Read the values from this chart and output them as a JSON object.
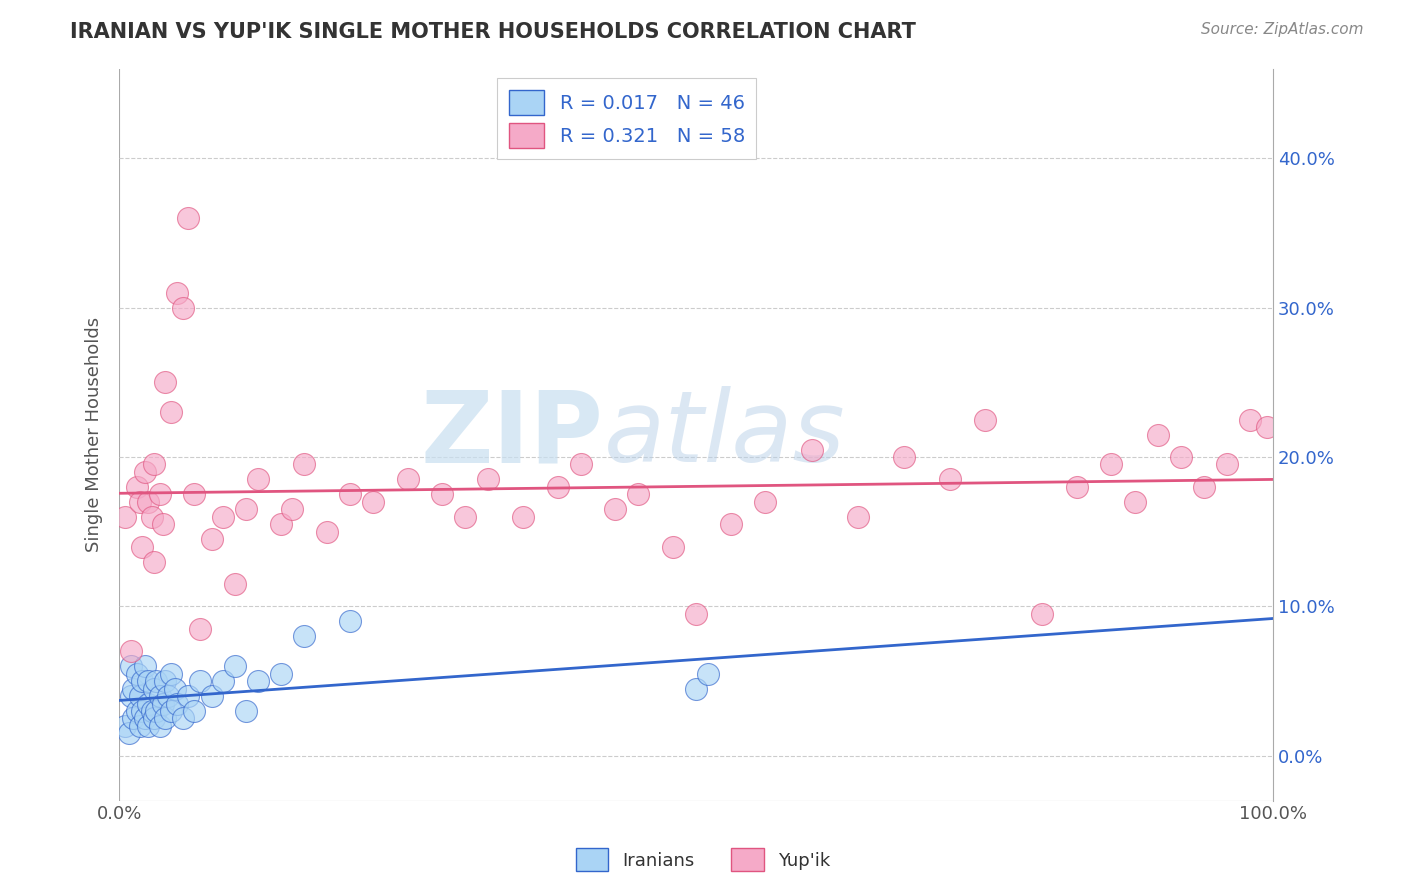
{
  "title": "IRANIAN VS YUP'IK SINGLE MOTHER HOUSEHOLDS CORRELATION CHART",
  "source": "Source: ZipAtlas.com",
  "ylabel": "Single Mother Households",
  "xlim": [
    0.0,
    1.0
  ],
  "ylim": [
    -0.03,
    0.46
  ],
  "ytick_vals": [
    0.0,
    0.1,
    0.2,
    0.3,
    0.4
  ],
  "legend_label1": "Iranians",
  "legend_label2": "Yup'ik",
  "r1": 0.017,
  "n1": 46,
  "r2": 0.321,
  "n2": 58,
  "color_iranian": "#aad4f5",
  "color_yupik": "#f5aac8",
  "line_color_iranian": "#3366cc",
  "line_color_yupik": "#e05580",
  "background_color": "#ffffff",
  "watermark_zip": "ZIP",
  "watermark_atlas": "atlas",
  "grid_color": "#cccccc",
  "iranian_x": [
    0.005,
    0.008,
    0.01,
    0.01,
    0.012,
    0.012,
    0.015,
    0.015,
    0.018,
    0.018,
    0.02,
    0.02,
    0.022,
    0.022,
    0.025,
    0.025,
    0.025,
    0.028,
    0.03,
    0.03,
    0.032,
    0.032,
    0.035,
    0.035,
    0.038,
    0.04,
    0.04,
    0.042,
    0.045,
    0.045,
    0.048,
    0.05,
    0.055,
    0.06,
    0.065,
    0.07,
    0.08,
    0.09,
    0.1,
    0.11,
    0.12,
    0.14,
    0.16,
    0.2,
    0.5,
    0.51
  ],
  "iranian_y": [
    0.02,
    0.015,
    0.04,
    0.06,
    0.025,
    0.045,
    0.03,
    0.055,
    0.02,
    0.04,
    0.03,
    0.05,
    0.025,
    0.06,
    0.02,
    0.035,
    0.05,
    0.03,
    0.025,
    0.045,
    0.03,
    0.05,
    0.02,
    0.04,
    0.035,
    0.025,
    0.05,
    0.04,
    0.03,
    0.055,
    0.045,
    0.035,
    0.025,
    0.04,
    0.03,
    0.05,
    0.04,
    0.05,
    0.06,
    0.03,
    0.05,
    0.055,
    0.08,
    0.09,
    0.045,
    0.055
  ],
  "yupik_x": [
    0.005,
    0.01,
    0.015,
    0.018,
    0.02,
    0.022,
    0.025,
    0.028,
    0.03,
    0.03,
    0.035,
    0.038,
    0.04,
    0.045,
    0.05,
    0.055,
    0.06,
    0.065,
    0.07,
    0.08,
    0.09,
    0.1,
    0.11,
    0.12,
    0.14,
    0.15,
    0.16,
    0.18,
    0.2,
    0.22,
    0.25,
    0.28,
    0.3,
    0.32,
    0.35,
    0.38,
    0.4,
    0.43,
    0.45,
    0.48,
    0.5,
    0.53,
    0.56,
    0.6,
    0.64,
    0.68,
    0.72,
    0.75,
    0.8,
    0.83,
    0.86,
    0.88,
    0.9,
    0.92,
    0.94,
    0.96,
    0.98,
    0.995
  ],
  "yupik_y": [
    0.16,
    0.07,
    0.18,
    0.17,
    0.14,
    0.19,
    0.17,
    0.16,
    0.13,
    0.195,
    0.175,
    0.155,
    0.25,
    0.23,
    0.31,
    0.3,
    0.36,
    0.175,
    0.085,
    0.145,
    0.16,
    0.115,
    0.165,
    0.185,
    0.155,
    0.165,
    0.195,
    0.15,
    0.175,
    0.17,
    0.185,
    0.175,
    0.16,
    0.185,
    0.16,
    0.18,
    0.195,
    0.165,
    0.175,
    0.14,
    0.095,
    0.155,
    0.17,
    0.205,
    0.16,
    0.2,
    0.185,
    0.225,
    0.095,
    0.18,
    0.195,
    0.17,
    0.215,
    0.2,
    0.18,
    0.195,
    0.225,
    0.22
  ]
}
